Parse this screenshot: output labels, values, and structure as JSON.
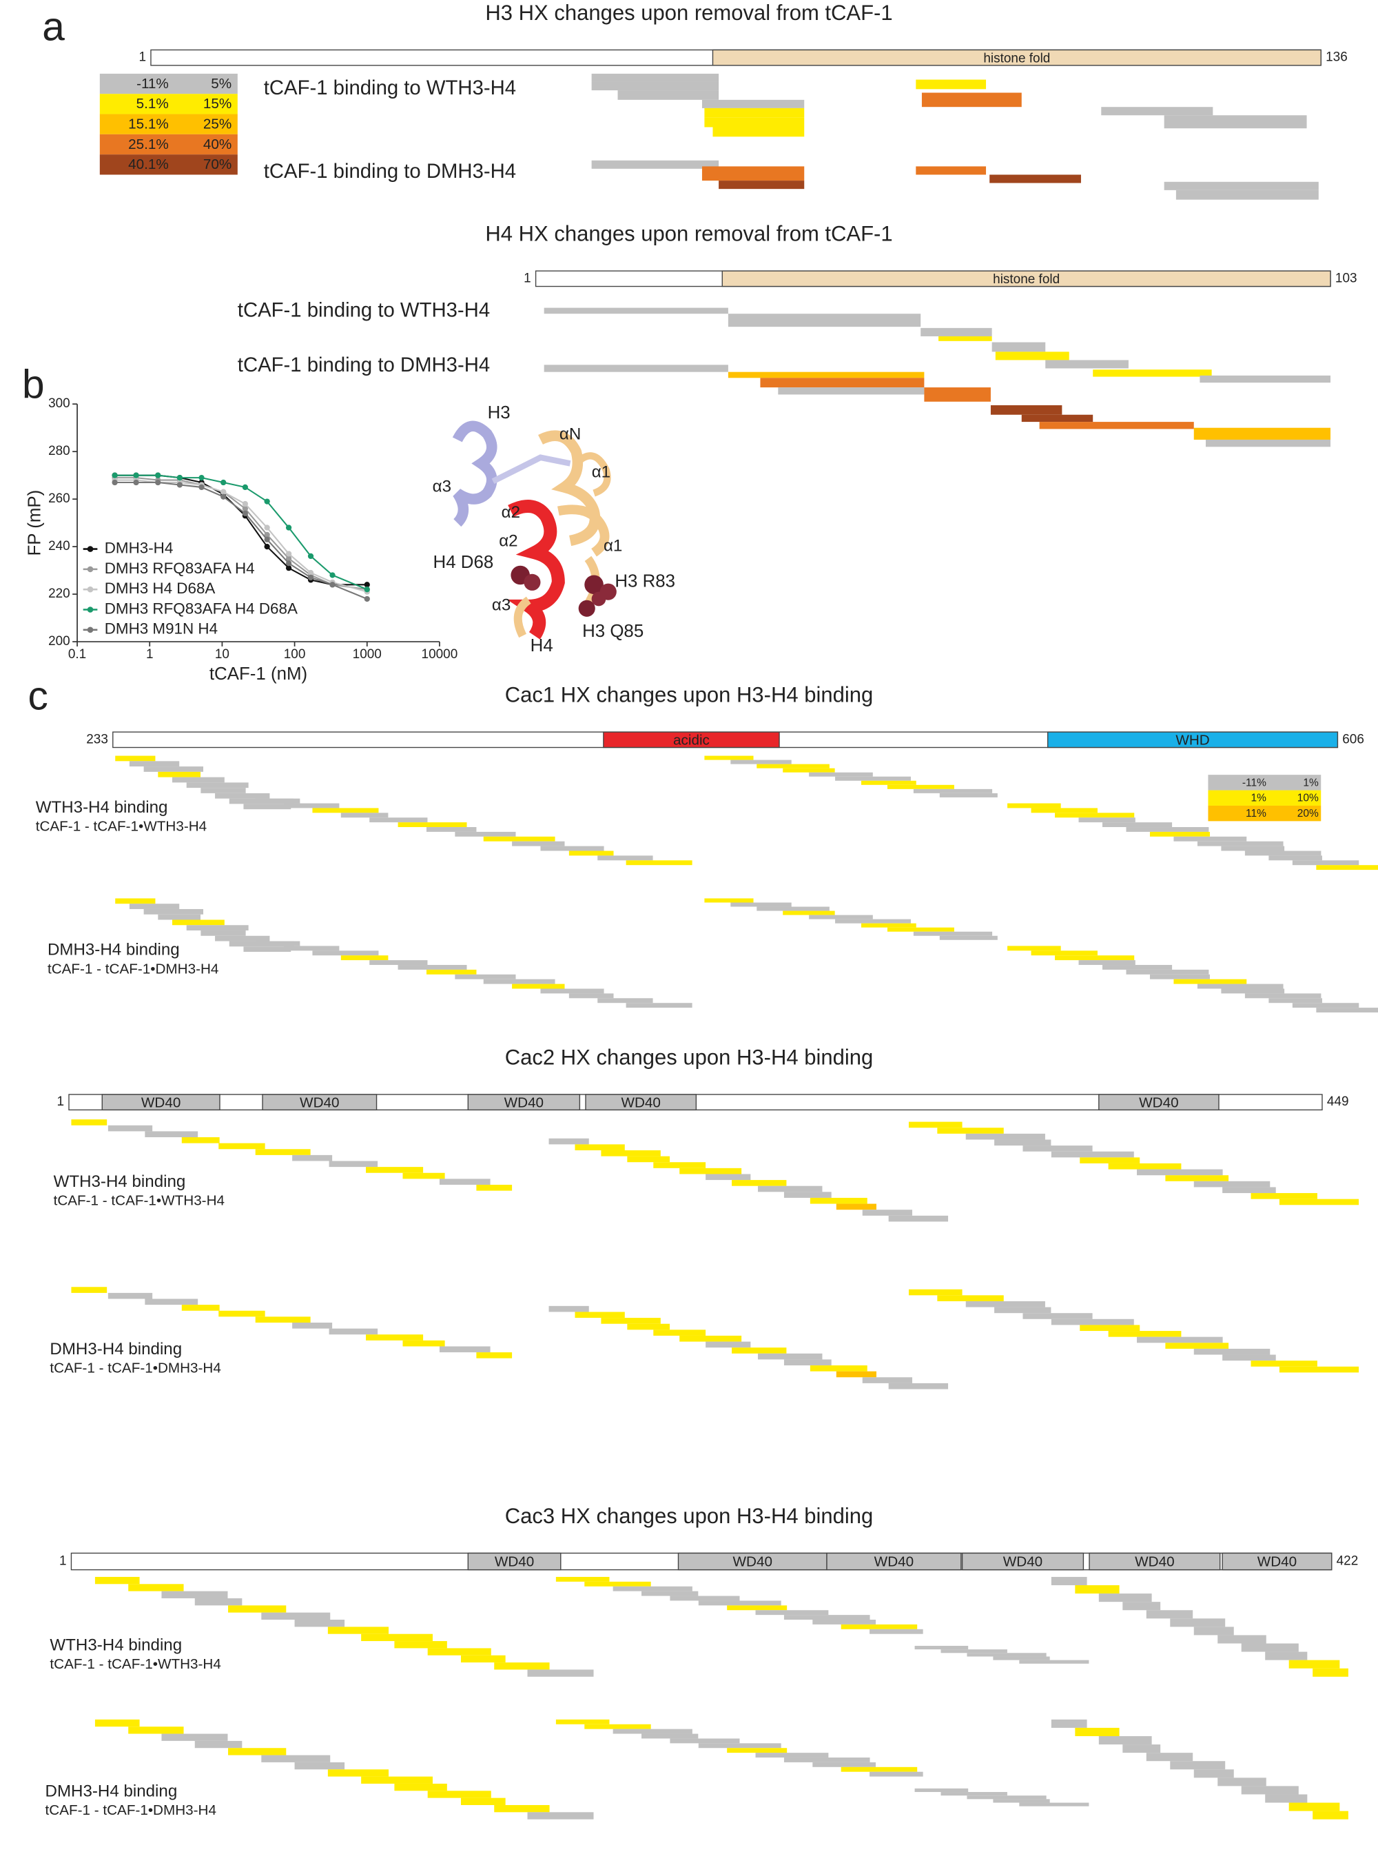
{
  "panel_labels": [
    "a",
    "b",
    "c"
  ],
  "panel_a": {
    "h3": {
      "title": "H3 HX changes upon removal from tCAF-1",
      "start": "1",
      "end": "136",
      "domain": "histone fold"
    },
    "legend": [
      [
        "-11%",
        "5%"
      ],
      [
        "5.1%",
        "15%"
      ],
      [
        "15.1%",
        "25%"
      ],
      [
        "25.1%",
        "40%"
      ],
      [
        "40.1%",
        "70%"
      ]
    ],
    "h3_rows": [
      "tCAF-1 binding  to WTH3-H4",
      "tCAF-1 binding  to DMH3-H4"
    ],
    "h4": {
      "title": "H4 HX changes upon removal from tCAF-1",
      "start": "1",
      "end": "103",
      "domain": "histone fold"
    },
    "h4_rows": [
      "tCAF-1 binding  to WTH3-H4",
      "tCAF-1 binding  to DMH3-H4"
    ]
  },
  "chart_data": {
    "type": "scatter",
    "xlabel": "tCAF-1 (nM)",
    "ylabel": "FP (mP)",
    "log_x": true,
    "xlim": [
      0.1,
      10000
    ],
    "xticks": [
      0.1,
      1,
      10,
      100,
      1000,
      10000
    ],
    "ylim": [
      200,
      300
    ],
    "yticks": [
      200,
      220,
      240,
      260,
      280,
      300
    ],
    "x": [
      0.33,
      0.65,
      1.3,
      2.6,
      5.2,
      10.4,
      20.8,
      41.7,
      83,
      167,
      333,
      1000
    ],
    "series": [
      {
        "name": "DMH3-H4",
        "color": "#111111",
        "values": [
          270,
          270,
          270,
          269,
          267,
          262,
          253,
          240,
          231,
          226,
          224,
          224
        ]
      },
      {
        "name": "DMH3 RFQ83AFA H4",
        "color": "#9a9a9a",
        "values": [
          269,
          269,
          268,
          268,
          266,
          263,
          256,
          245,
          235,
          228,
          224,
          222
        ]
      },
      {
        "name": "DMH3 H4 D68A",
        "color": "#c4c4c4",
        "values": [
          268,
          268,
          267,
          267,
          266,
          263,
          258,
          248,
          237,
          229,
          225,
          221
        ]
      },
      {
        "name": "DMH3 RFQ83AFA H4 D68A",
        "color": "#1a9a6c",
        "values": [
          270,
          270,
          270,
          269,
          269,
          267,
          265,
          259,
          248,
          236,
          228,
          222
        ]
      },
      {
        "name": "DMH3 M91N H4",
        "color": "#777777",
        "values": [
          267,
          267,
          267,
          266,
          265,
          261,
          254,
          243,
          233,
          227,
          224,
          218
        ]
      }
    ],
    "structure_labels": [
      "H3",
      "αN",
      "α3",
      "α1",
      "α2",
      "α2",
      "α1",
      "H4 D68",
      "H3 R83",
      "α3",
      "H3 Q85",
      "H4"
    ]
  },
  "panel_c": {
    "cac1": {
      "title": "Cac1 HX changes upon H3-H4 binding",
      "start": "233",
      "end": "606",
      "domains": [
        "acidic",
        "WHD"
      ],
      "legend": [
        [
          "-11%",
          "1%"
        ],
        [
          "1%",
          "10%"
        ],
        [
          "11%",
          "20%"
        ]
      ],
      "rows": [
        [
          "WTH3-H4 binding",
          "tCAF-1 - tCAF-1•WTH3-H4"
        ],
        [
          "DMH3-H4 binding",
          "tCAF-1 - tCAF-1•DMH3-H4"
        ]
      ]
    },
    "cac2": {
      "title": "Cac2 HX changes upon H3-H4 binding",
      "start": "1",
      "end": "449",
      "domains": [
        "WD40",
        "WD40",
        "WD40",
        "WD40",
        "WD40"
      ],
      "rows": [
        [
          "WTH3-H4 binding",
          "tCAF-1 - tCAF-1•WTH3-H4"
        ],
        [
          "DMH3-H4 binding",
          "tCAF-1 - tCAF-1•DMH3-H4"
        ]
      ]
    },
    "cac3": {
      "title": "Cac3 HX changes upon H3-H4 binding",
      "start": "1",
      "end": "422",
      "domains": [
        "WD40",
        "WD40",
        "WD40",
        "WD40",
        "WD40",
        "WD40"
      ],
      "rows": [
        [
          "WTH3-H4 binding",
          "tCAF-1 - tCAF-1•WTH3-H4"
        ],
        [
          "DMH3-H4 binding",
          "tCAF-1 - tCAF-1•DMH3-H4"
        ]
      ]
    }
  }
}
